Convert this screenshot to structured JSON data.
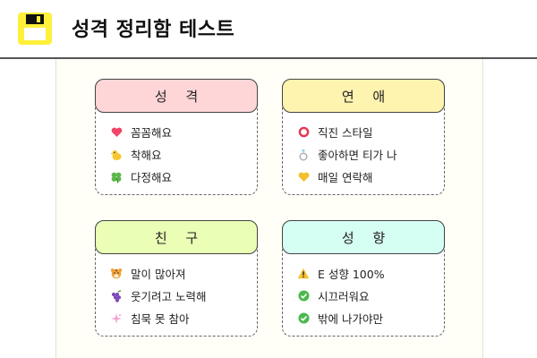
{
  "app": {
    "title": "성격 정리함 테스트",
    "icon": "floppy-disk-icon"
  },
  "colors": {
    "personality_header": "#ffd6d8",
    "love_header": "#fff3b0",
    "friend_header": "#eaffb5",
    "tendency_header": "#d6fff3"
  },
  "cards": {
    "personality": {
      "title": "성 격",
      "items": [
        {
          "icon": "heart-icon",
          "label": "꼼꼼해요"
        },
        {
          "icon": "chick-icon",
          "label": "착해요"
        },
        {
          "icon": "clover-icon",
          "label": "다정해요"
        }
      ]
    },
    "love": {
      "title": "연 애",
      "items": [
        {
          "icon": "ring-circle-icon",
          "label": "직진 스타일"
        },
        {
          "icon": "ring-icon",
          "label": "좋아하면 티가 나"
        },
        {
          "icon": "yellow-heart-icon",
          "label": "매일 연락해"
        }
      ]
    },
    "friend": {
      "title": "친 구",
      "items": [
        {
          "icon": "tiger-face-icon",
          "label": "말이 많아져"
        },
        {
          "icon": "grapes-icon",
          "label": "웃기려고 노력해"
        },
        {
          "icon": "sparkle-icon",
          "label": "침묵 못 참아"
        }
      ]
    },
    "tendency": {
      "title": "성 향",
      "items": [
        {
          "icon": "warning-icon",
          "label": "E 성향 100%"
        },
        {
          "icon": "check-icon",
          "label": "시끄러워요"
        },
        {
          "icon": "check-icon",
          "label": "밖에 나가야만"
        }
      ]
    }
  }
}
